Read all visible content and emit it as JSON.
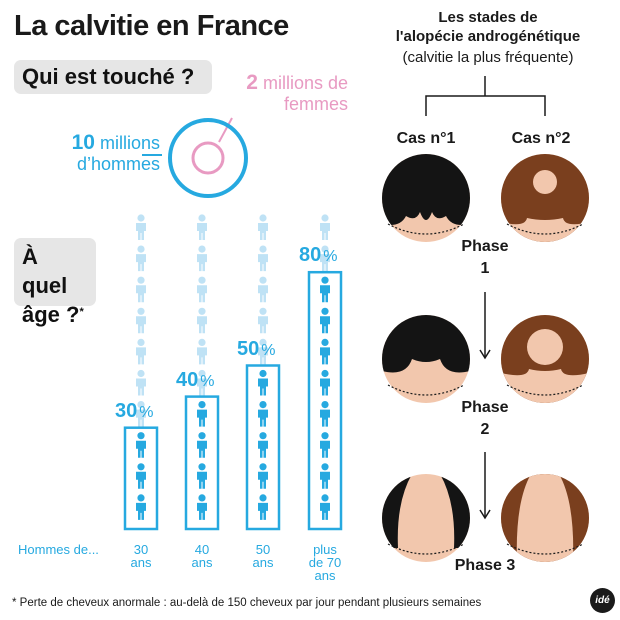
{
  "title": "La calvitie en France",
  "who": {
    "heading": "Qui est touché ?",
    "men_value": "10",
    "men_text": "millions d’hommes",
    "women_value": "2",
    "women_text": "millions de femmes"
  },
  "age": {
    "heading": "À quel âge ?",
    "heading_line1": "À quel",
    "heading_line2": "âge ?",
    "footnote_mark": "*",
    "row_label": "Hommes de...",
    "groups": [
      {
        "label_line1": "30",
        "label_line2": "ans",
        "label_line3": "",
        "percent": 30,
        "percent_value": "30",
        "percent_sign": "%"
      },
      {
        "label_line1": "40",
        "label_line2": "ans",
        "label_line3": "",
        "percent": 40,
        "percent_value": "40",
        "percent_sign": "%"
      },
      {
        "label_line1": "50",
        "label_line2": "ans",
        "label_line3": "",
        "percent": 50,
        "percent_value": "50",
        "percent_sign": "%"
      },
      {
        "label_line1": "plus",
        "label_line2": "de 70",
        "label_line3": "ans",
        "percent": 80,
        "percent_value": "80",
        "percent_sign": "%"
      }
    ],
    "people_per_column": 10
  },
  "stages": {
    "title_line1": "Les stades de",
    "title_line2": "l'alopécie androgénétique",
    "subtitle": "(calvitie la plus fréquente)",
    "case1": "Cas n°1",
    "case2": "Cas n°2",
    "phases": [
      {
        "word": "Phase",
        "number": "1"
      },
      {
        "word": "Phase",
        "number": "2"
      },
      {
        "word": "Phase",
        "number": "3"
      }
    ]
  },
  "footnote": "* Perte de cheveux anormale : au-delà de 150 cheveux par jour pendant plusieurs semaines",
  "logo_text": "idé",
  "colors": {
    "blue": "#26a9e0",
    "light_blue": "#bfe2f5",
    "pink": "#e89ac2",
    "skin": "#f2c7ad",
    "black_hair": "#141414",
    "brown_hair": "#7a3f1e",
    "box_grey": "#e6e6e6"
  }
}
